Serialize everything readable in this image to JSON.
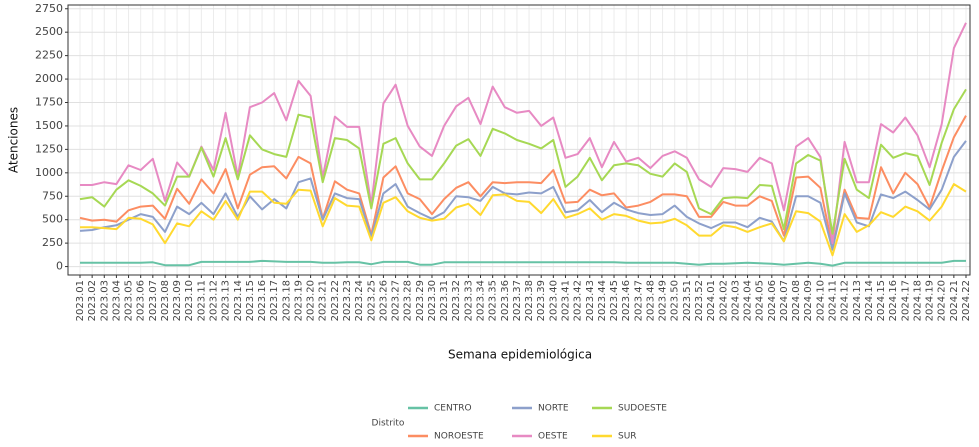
{
  "chart_data": {
    "type": "line",
    "x_label": "Semana epidemiológica",
    "y_label": "Atenciones",
    "legend_title": "Distrito",
    "legend_position": "bottom",
    "grid": true,
    "ylim": [
      -90,
      2790
    ],
    "yticks": [
      0,
      250,
      500,
      750,
      1000,
      1250,
      1500,
      1750,
      2000,
      2250,
      2500,
      2750
    ],
    "categories": [
      "2023.01",
      "2023.02",
      "2023.03",
      "2023.04",
      "2023.05",
      "2023.06",
      "2023.07",
      "2023.08",
      "2023.09",
      "2023.10",
      "2023.11",
      "2023.12",
      "2023.13",
      "2023.14",
      "2023.15",
      "2023.16",
      "2023.17",
      "2023.18",
      "2023.19",
      "2023.20",
      "2023.21",
      "2023.22",
      "2023.23",
      "2023.24",
      "2023.25",
      "2023.26",
      "2023.27",
      "2023.28",
      "2023.29",
      "2023.30",
      "2023.31",
      "2023.32",
      "2023.33",
      "2023.34",
      "2023.35",
      "2023.36",
      "2023.37",
      "2023.38",
      "2023.39",
      "2023.40",
      "2023.41",
      "2023.42",
      "2023.43",
      "2023.44",
      "2023.45",
      "2023.46",
      "2023.47",
      "2023.48",
      "2023.49",
      "2023.50",
      "2023.51",
      "2023.52",
      "2024.01",
      "2024.02",
      "2024.03",
      "2024.04",
      "2024.05",
      "2024.06",
      "2024.07",
      "2024.08",
      "2024.09",
      "2024.10",
      "2024.11",
      "2024.12",
      "2024.13",
      "2024.14",
      "2024.15",
      "2024.16",
      "2024.17",
      "2024.18",
      "2024.19",
      "2024.20",
      "2024.21",
      "2024.22"
    ],
    "series": [
      {
        "name": "CENTRO",
        "color": "#66c2a5",
        "values": [
          40,
          40,
          40,
          40,
          40,
          40,
          45,
          15,
          15,
          15,
          50,
          50,
          50,
          50,
          50,
          60,
          55,
          50,
          50,
          50,
          40,
          40,
          45,
          45,
          25,
          50,
          50,
          50,
          20,
          20,
          45,
          45,
          45,
          45,
          45,
          45,
          45,
          45,
          45,
          45,
          45,
          45,
          45,
          45,
          45,
          40,
          40,
          40,
          40,
          40,
          30,
          20,
          30,
          30,
          35,
          40,
          35,
          30,
          20,
          30,
          40,
          30,
          10,
          40,
          40,
          40,
          40,
          40,
          40,
          40,
          40,
          40,
          60,
          60
        ]
      },
      {
        "name": "NOROESTE",
        "color": "#fc8d62",
        "values": [
          520,
          490,
          500,
          480,
          600,
          640,
          650,
          510,
          830,
          670,
          930,
          780,
          1040,
          620,
          980,
          1060,
          1070,
          940,
          1170,
          1100,
          510,
          910,
          820,
          780,
          340,
          950,
          1070,
          780,
          720,
          560,
          720,
          840,
          900,
          750,
          900,
          890,
          900,
          900,
          890,
          1030,
          680,
          690,
          820,
          760,
          780,
          630,
          650,
          690,
          770,
          770,
          750,
          530,
          530,
          690,
          650,
          650,
          750,
          700,
          330,
          950,
          960,
          840,
          200,
          820,
          520,
          510,
          1060,
          780,
          1000,
          880,
          630,
          1020,
          1380,
          1610
        ]
      },
      {
        "name": "NORTE",
        "color": "#8da0cb",
        "values": [
          380,
          390,
          420,
          440,
          500,
          560,
          530,
          370,
          640,
          560,
          680,
          560,
          780,
          530,
          750,
          610,
          720,
          620,
          900,
          940,
          500,
          780,
          730,
          720,
          320,
          780,
          880,
          640,
          570,
          510,
          580,
          750,
          740,
          700,
          850,
          780,
          770,
          790,
          780,
          850,
          580,
          600,
          710,
          580,
          680,
          610,
          570,
          550,
          560,
          650,
          530,
          460,
          410,
          470,
          470,
          420,
          520,
          480,
          270,
          750,
          750,
          680,
          180,
          780,
          470,
          430,
          770,
          730,
          800,
          710,
          610,
          820,
          1170,
          1340
        ]
      },
      {
        "name": "OESTE",
        "color": "#e78ac3",
        "values": [
          870,
          870,
          900,
          880,
          1080,
          1030,
          1150,
          700,
          1110,
          960,
          1280,
          1030,
          1640,
          960,
          1700,
          1750,
          1850,
          1560,
          1980,
          1820,
          950,
          1600,
          1490,
          1490,
          660,
          1740,
          1940,
          1500,
          1280,
          1180,
          1500,
          1710,
          1800,
          1520,
          1920,
          1700,
          1640,
          1660,
          1500,
          1590,
          1160,
          1200,
          1370,
          1060,
          1330,
          1120,
          1160,
          1050,
          1180,
          1230,
          1160,
          930,
          850,
          1050,
          1040,
          1010,
          1160,
          1100,
          600,
          1280,
          1370,
          1170,
          250,
          1330,
          900,
          900,
          1520,
          1430,
          1590,
          1400,
          1060,
          1520,
          2330,
          2600
        ]
      },
      {
        "name": "SUDOESTE",
        "color": "#a6d854",
        "values": [
          720,
          740,
          640,
          820,
          920,
          860,
          780,
          650,
          960,
          960,
          1270,
          960,
          1370,
          930,
          1400,
          1250,
          1200,
          1170,
          1620,
          1590,
          900,
          1370,
          1350,
          1260,
          620,
          1310,
          1370,
          1100,
          930,
          930,
          1100,
          1290,
          1360,
          1180,
          1470,
          1420,
          1350,
          1310,
          1260,
          1350,
          850,
          960,
          1160,
          920,
          1080,
          1100,
          1080,
          990,
          960,
          1100,
          1010,
          620,
          560,
          730,
          740,
          730,
          870,
          860,
          400,
          1100,
          1190,
          1130,
          350,
          1150,
          820,
          730,
          1300,
          1160,
          1210,
          1180,
          870,
          1320,
          1680,
          1890
        ]
      },
      {
        "name": "SUR",
        "color": "#ffd92f",
        "values": [
          420,
          420,
          410,
          400,
          520,
          510,
          450,
          250,
          460,
          430,
          590,
          500,
          700,
          500,
          800,
          800,
          680,
          670,
          820,
          810,
          430,
          730,
          650,
          640,
          280,
          680,
          740,
          590,
          520,
          490,
          510,
          630,
          670,
          550,
          760,
          770,
          700,
          690,
          570,
          720,
          520,
          560,
          620,
          500,
          560,
          540,
          490,
          460,
          470,
          510,
          440,
          330,
          330,
          440,
          420,
          370,
          420,
          460,
          270,
          590,
          570,
          480,
          120,
          560,
          370,
          440,
          580,
          530,
          640,
          590,
          490,
          640,
          880,
          800
        ]
      }
    ]
  }
}
